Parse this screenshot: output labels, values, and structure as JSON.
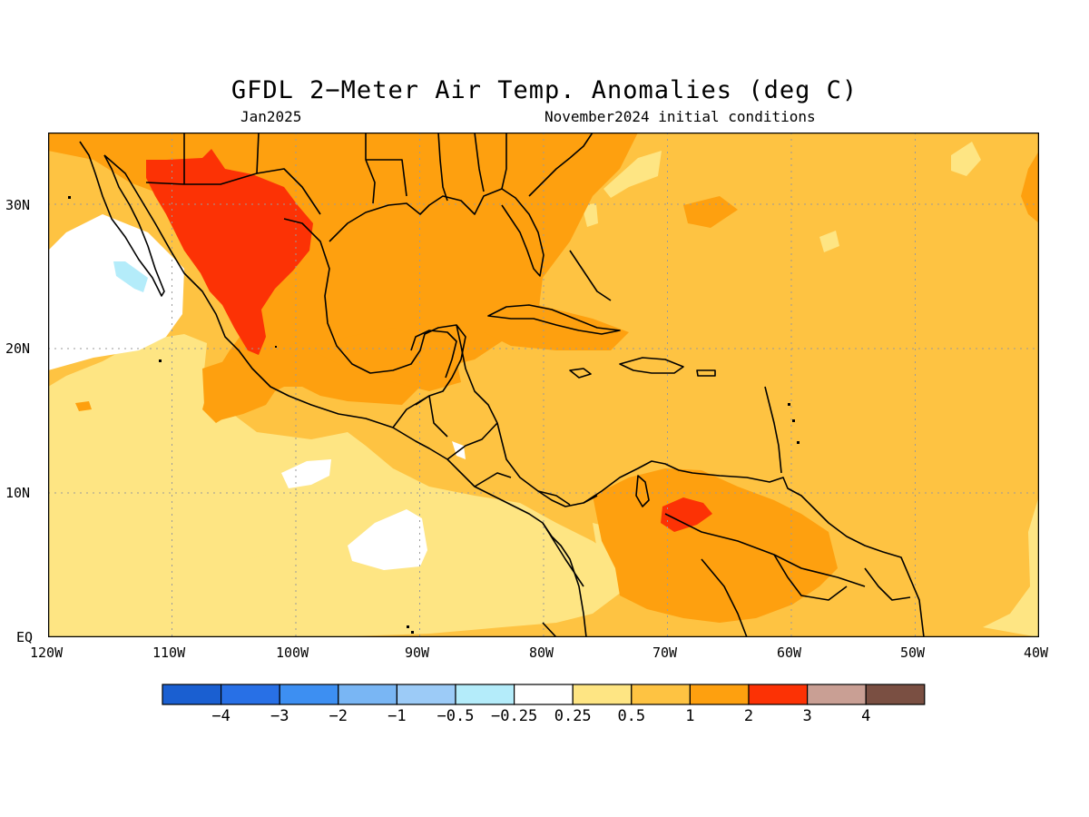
{
  "title": "GFDL 2−Meter Air Temp. Anomalies (deg C)",
  "subtitle_left": "Jan2025",
  "subtitle_right": "November2024 initial conditions",
  "map": {
    "projection": "lat-lon",
    "lon_range": [
      -120,
      -40
    ],
    "lat_range": [
      0,
      35
    ],
    "x_ticks": [
      "120W",
      "110W",
      "100W",
      "90W",
      "80W",
      "70W",
      "60W",
      "50W",
      "40W"
    ],
    "y_ticks": [
      "EQ",
      "10N",
      "20N",
      "30N"
    ],
    "gridlines": "dotted"
  },
  "legend": {
    "colors": [
      "#1a5fd1",
      "#2870e6",
      "#3d8ff2",
      "#79b6f4",
      "#9ccbf7",
      "#b4ecfa",
      "#ffffff",
      "#fee583",
      "#fec342",
      "#fea00f",
      "#fc3205",
      "#c99f94",
      "#7a4f42"
    ],
    "labels": [
      "−4",
      "−3",
      "−2",
      "−1",
      "−0.5",
      "−0.25",
      "0.25",
      "0.5",
      "1",
      "2",
      "3",
      "4"
    ]
  }
}
